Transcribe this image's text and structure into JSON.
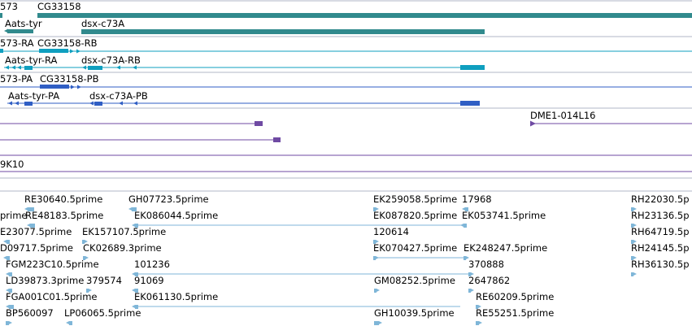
{
  "colors": {
    "gene": "#318a8d",
    "transcript": "#0f9fbf",
    "protein": "#2f5ec4",
    "clone": "#6f4aa3",
    "est": "#7fb6d8",
    "separator": "#b0b7c7"
  },
  "gene_labels": [
    "573",
    "CG33158",
    "Aats-tyr",
    "dsx-c73A"
  ],
  "transcript_labels": [
    "573-RA",
    "CG33158-RB",
    "Aats-tyr-RA",
    "dsx-c73A-RB"
  ],
  "protein_labels": [
    "573-PA",
    "CG33158-PB",
    "Aats-tyr-PA",
    "dsx-c73A-PB"
  ],
  "clone_labels": [
    "DME1-014L16",
    "9K10"
  ],
  "est_labels": [
    "RE30640.5prime",
    "GH07723.5prime",
    "EK259058.5prime",
    "17968",
    "RH22030.5p",
    "prime",
    "RE48183.5prime",
    "EK086044.5prime",
    "EK087820.5prime",
    "EK053741.5prime",
    "RH23136.5p",
    "E23077.5prime",
    "EK157107.5prime",
    "120614",
    "RH64719.5p",
    "D09717.5prime",
    "CK02689.3prime",
    "EK070427.5prime",
    "EK248247.5prime",
    "RH24145.5p",
    "FGM223C10.5prime",
    "101236",
    "370888",
    "RH36130.5p",
    "LD39873.3prime",
    "379574",
    "91069",
    "GM08252.5prime",
    "2647862",
    "FGA001C01.5prime",
    "EK061130.5prime",
    "RE60209.5prime",
    "BP560097",
    "LP06065.5prime",
    "GH10039.5prime",
    "RE55251.5prime"
  ]
}
